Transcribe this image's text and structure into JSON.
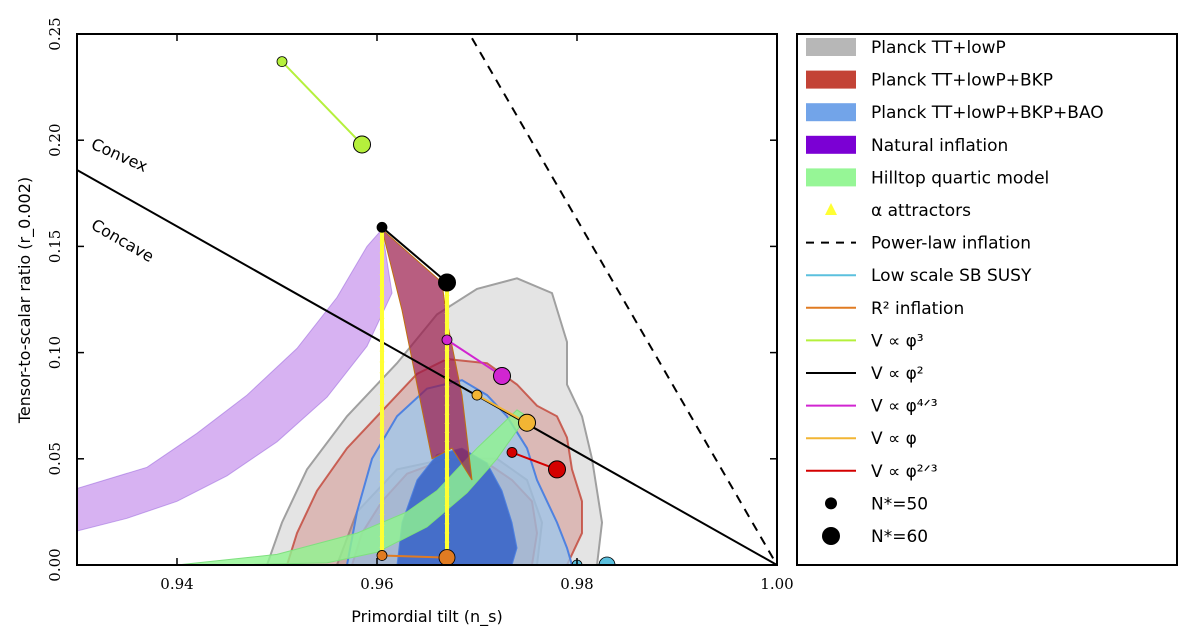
{
  "chart_data": {
    "type": "scatter",
    "xlabel": "Primordial tilt (n_s)",
    "ylabel": "Tensor-to-scalar ratio (r_0.002)",
    "xlim": [
      0.93,
      1.0
    ],
    "ylim": [
      0.0,
      0.25
    ],
    "xticks": [
      "0.94",
      "0.96",
      "0.98",
      "1.00"
    ],
    "yticks": [
      "0.00",
      "0.05",
      "0.10",
      "0.15",
      "0.20",
      "0.25"
    ],
    "legend_position": "outside-right",
    "annotations": [
      "Convex",
      "Concave"
    ],
    "legend": [
      {
        "label": "Planck TT+lowP",
        "kind": "patch",
        "color": "#b3b3b3"
      },
      {
        "label": "Planck TT+lowP+BKP",
        "kind": "patch",
        "color": "#c0392b"
      },
      {
        "label": "Planck TT+lowP+BKP+BAO",
        "kind": "patch",
        "color": "#6a9fe8"
      },
      {
        "label": "Natural inflation",
        "kind": "patch",
        "color": "#7b00d4"
      },
      {
        "label": "Hilltop quartic model",
        "kind": "patch",
        "color": "#90f590"
      },
      {
        "label": "α attractors",
        "kind": "triangle",
        "color": "#ffff33"
      },
      {
        "label": "Power-law inflation",
        "kind": "dashed",
        "color": "#000000"
      },
      {
        "label": "Low scale SB SUSY",
        "kind": "line",
        "color": "#5bc0de"
      },
      {
        "label": "R² inflation",
        "kind": "line",
        "color": "#e07b22"
      },
      {
        "label": "V ∝ φ³",
        "kind": "line",
        "color": "#b5f03c"
      },
      {
        "label": "V ∝ φ²",
        "kind": "line",
        "color": "#000000"
      },
      {
        "label": "V ∝ φ⁴ᐟ³",
        "kind": "line",
        "color": "#d125d1"
      },
      {
        "label": "V ∝ φ",
        "kind": "line",
        "color": "#f2b534"
      },
      {
        "label": "V ∝ φ²ᐟ³",
        "kind": "line",
        "color": "#d40000"
      },
      {
        "label": "N*=50",
        "kind": "dot-small",
        "color": "#000000"
      },
      {
        "label": "N*=60",
        "kind": "dot-large",
        "color": "#000000"
      }
    ],
    "contours": {
      "planck_tt_lowp": [
        {
          "level": "95%",
          "path": [
            [
              0.949,
              0.0
            ],
            [
              0.9505,
              0.02
            ],
            [
              0.953,
              0.045
            ],
            [
              0.957,
              0.07
            ],
            [
              0.962,
              0.095
            ],
            [
              0.966,
              0.118
            ],
            [
              0.97,
              0.13
            ],
            [
              0.974,
              0.135
            ],
            [
              0.9775,
              0.128
            ],
            [
              0.979,
              0.105
            ],
            [
              0.979,
              0.085
            ],
            [
              0.9805,
              0.07
            ],
            [
              0.9815,
              0.05
            ],
            [
              0.9825,
              0.02
            ],
            [
              0.982,
              0.0
            ]
          ]
        },
        {
          "level": "68%",
          "path": [
            [
              0.956,
              0.0
            ],
            [
              0.958,
              0.025
            ],
            [
              0.962,
              0.045
            ],
            [
              0.967,
              0.05
            ],
            [
              0.972,
              0.05
            ],
            [
              0.975,
              0.04
            ],
            [
              0.9765,
              0.02
            ],
            [
              0.976,
              0.0
            ]
          ]
        }
      ],
      "planck_tt_lowp_bkp": [
        {
          "level": "95%",
          "path": [
            [
              0.951,
              0.0
            ],
            [
              0.952,
              0.015
            ],
            [
              0.954,
              0.035
            ],
            [
              0.957,
              0.055
            ],
            [
              0.961,
              0.075
            ],
            [
              0.964,
              0.09
            ],
            [
              0.967,
              0.097
            ],
            [
              0.971,
              0.095
            ],
            [
              0.974,
              0.085
            ],
            [
              0.976,
              0.075
            ],
            [
              0.978,
              0.07
            ],
            [
              0.979,
              0.06
            ],
            [
              0.9795,
              0.045
            ],
            [
              0.9805,
              0.03
            ],
            [
              0.9805,
              0.015
            ],
            [
              0.979,
              0.0
            ]
          ]
        },
        {
          "level": "68%",
          "path": [
            [
              0.9575,
              0.0
            ],
            [
              0.9585,
              0.015
            ],
            [
              0.9605,
              0.03
            ],
            [
              0.963,
              0.043
            ],
            [
              0.967,
              0.05
            ],
            [
              0.971,
              0.048
            ],
            [
              0.9735,
              0.04
            ],
            [
              0.9755,
              0.03
            ],
            [
              0.976,
              0.015
            ],
            [
              0.9755,
              0.0
            ]
          ]
        }
      ],
      "planck_tt_lowp_bkp_bao": [
        {
          "level": "95%",
          "path": [
            [
              0.957,
              0.0
            ],
            [
              0.958,
              0.025
            ],
            [
              0.9595,
              0.05
            ],
            [
              0.962,
              0.07
            ],
            [
              0.965,
              0.083
            ],
            [
              0.9685,
              0.087
            ],
            [
              0.971,
              0.08
            ],
            [
              0.973,
              0.07
            ],
            [
              0.975,
              0.055
            ],
            [
              0.976,
              0.04
            ],
            [
              0.977,
              0.03
            ],
            [
              0.978,
              0.02
            ],
            [
              0.979,
              0.008
            ],
            [
              0.9795,
              0.0
            ]
          ]
        },
        {
          "level": "68%",
          "path": [
            [
              0.962,
              0.0
            ],
            [
              0.9625,
              0.02
            ],
            [
              0.964,
              0.04
            ],
            [
              0.966,
              0.052
            ],
            [
              0.9685,
              0.055
            ],
            [
              0.971,
              0.048
            ],
            [
              0.9725,
              0.035
            ],
            [
              0.9735,
              0.02
            ],
            [
              0.974,
              0.008
            ],
            [
              0.9735,
              0.0
            ]
          ]
        }
      ]
    },
    "model_regions": {
      "natural_inflation": [
        [
          0.93,
          0.016
        ],
        [
          0.935,
          0.022
        ],
        [
          0.94,
          0.03
        ],
        [
          0.945,
          0.042
        ],
        [
          0.95,
          0.058
        ],
        [
          0.955,
          0.079
        ],
        [
          0.959,
          0.103
        ],
        [
          0.9615,
          0.128
        ],
        [
          0.9605,
          0.158
        ],
        [
          0.959,
          0.15
        ],
        [
          0.956,
          0.126
        ],
        [
          0.952,
          0.102
        ],
        [
          0.947,
          0.08
        ],
        [
          0.942,
          0.062
        ],
        [
          0.937,
          0.046
        ],
        [
          0.93,
          0.036
        ]
      ],
      "hilltop_quartic": [
        [
          0.94,
          0.0
        ],
        [
          0.95,
          0.005
        ],
        [
          0.958,
          0.015
        ],
        [
          0.963,
          0.025
        ],
        [
          0.966,
          0.035
        ],
        [
          0.968,
          0.045
        ],
        [
          0.97,
          0.055
        ],
        [
          0.972,
          0.064
        ],
        [
          0.974,
          0.073
        ],
        [
          0.975,
          0.07
        ],
        [
          0.972,
          0.05
        ],
        [
          0.969,
          0.034
        ],
        [
          0.965,
          0.018
        ],
        [
          0.96,
          0.006
        ],
        [
          0.955,
          0.001
        ],
        [
          0.945,
          0.0
        ]
      ],
      "phi_sq_phi_cubed_band": [
        [
          0.9605,
          0.158
        ],
        [
          0.9665,
          0.133
        ],
        [
          0.967,
          0.115
        ],
        [
          0.9685,
          0.08
        ],
        [
          0.9695,
          0.04
        ],
        [
          0.9675,
          0.055
        ],
        [
          0.9655,
          0.05
        ],
        [
          0.9625,
          0.12
        ]
      ]
    },
    "attractor_lines": [
      {
        "n50": [
          0.9605,
          0.158
        ],
        "n60": [
          0.9605,
          0.004
        ],
        "label": "N*=50 attractor"
      },
      {
        "n50": [
          0.967,
          0.132
        ],
        "n60": [
          0.967,
          0.003
        ],
        "label": "N*=60 attractor"
      }
    ],
    "power_law_inflation": [
      [
        0.9695,
        0.248
      ],
      [
        1.0,
        0.0
      ]
    ],
    "convex_concave_line": [
      [
        0.93,
        0.186
      ],
      [
        1.0,
        0.0
      ]
    ],
    "low_scale_sb_susy": {
      "n50": [
        0.98,
        0.0
      ],
      "n60": [
        0.983,
        0.0
      ]
    },
    "r2_inflation": {
      "n50": [
        0.9605,
        0.0045
      ],
      "n60": [
        0.967,
        0.0035
      ]
    },
    "monomials": [
      {
        "name": "V ∝ φ³",
        "n50": [
          0.9505,
          0.237
        ],
        "n60": [
          0.9585,
          0.198
        ],
        "color": "#b5f03c"
      },
      {
        "name": "V ∝ φ²",
        "n50": [
          0.9605,
          0.159
        ],
        "n60": [
          0.967,
          0.133
        ],
        "color": "#000000"
      },
      {
        "name": "V ∝ φ⁴ᐟ³",
        "n50": [
          0.967,
          0.106
        ],
        "n60": [
          0.9725,
          0.089
        ],
        "color": "#d125d1"
      },
      {
        "name": "V ∝ φ",
        "n50": [
          0.97,
          0.08
        ],
        "n60": [
          0.975,
          0.067
        ],
        "color": "#f2b534"
      },
      {
        "name": "V ∝ φ²ᐟ³",
        "n50": [
          0.9735,
          0.053
        ],
        "n60": [
          0.978,
          0.045
        ],
        "color": "#d40000"
      }
    ]
  }
}
